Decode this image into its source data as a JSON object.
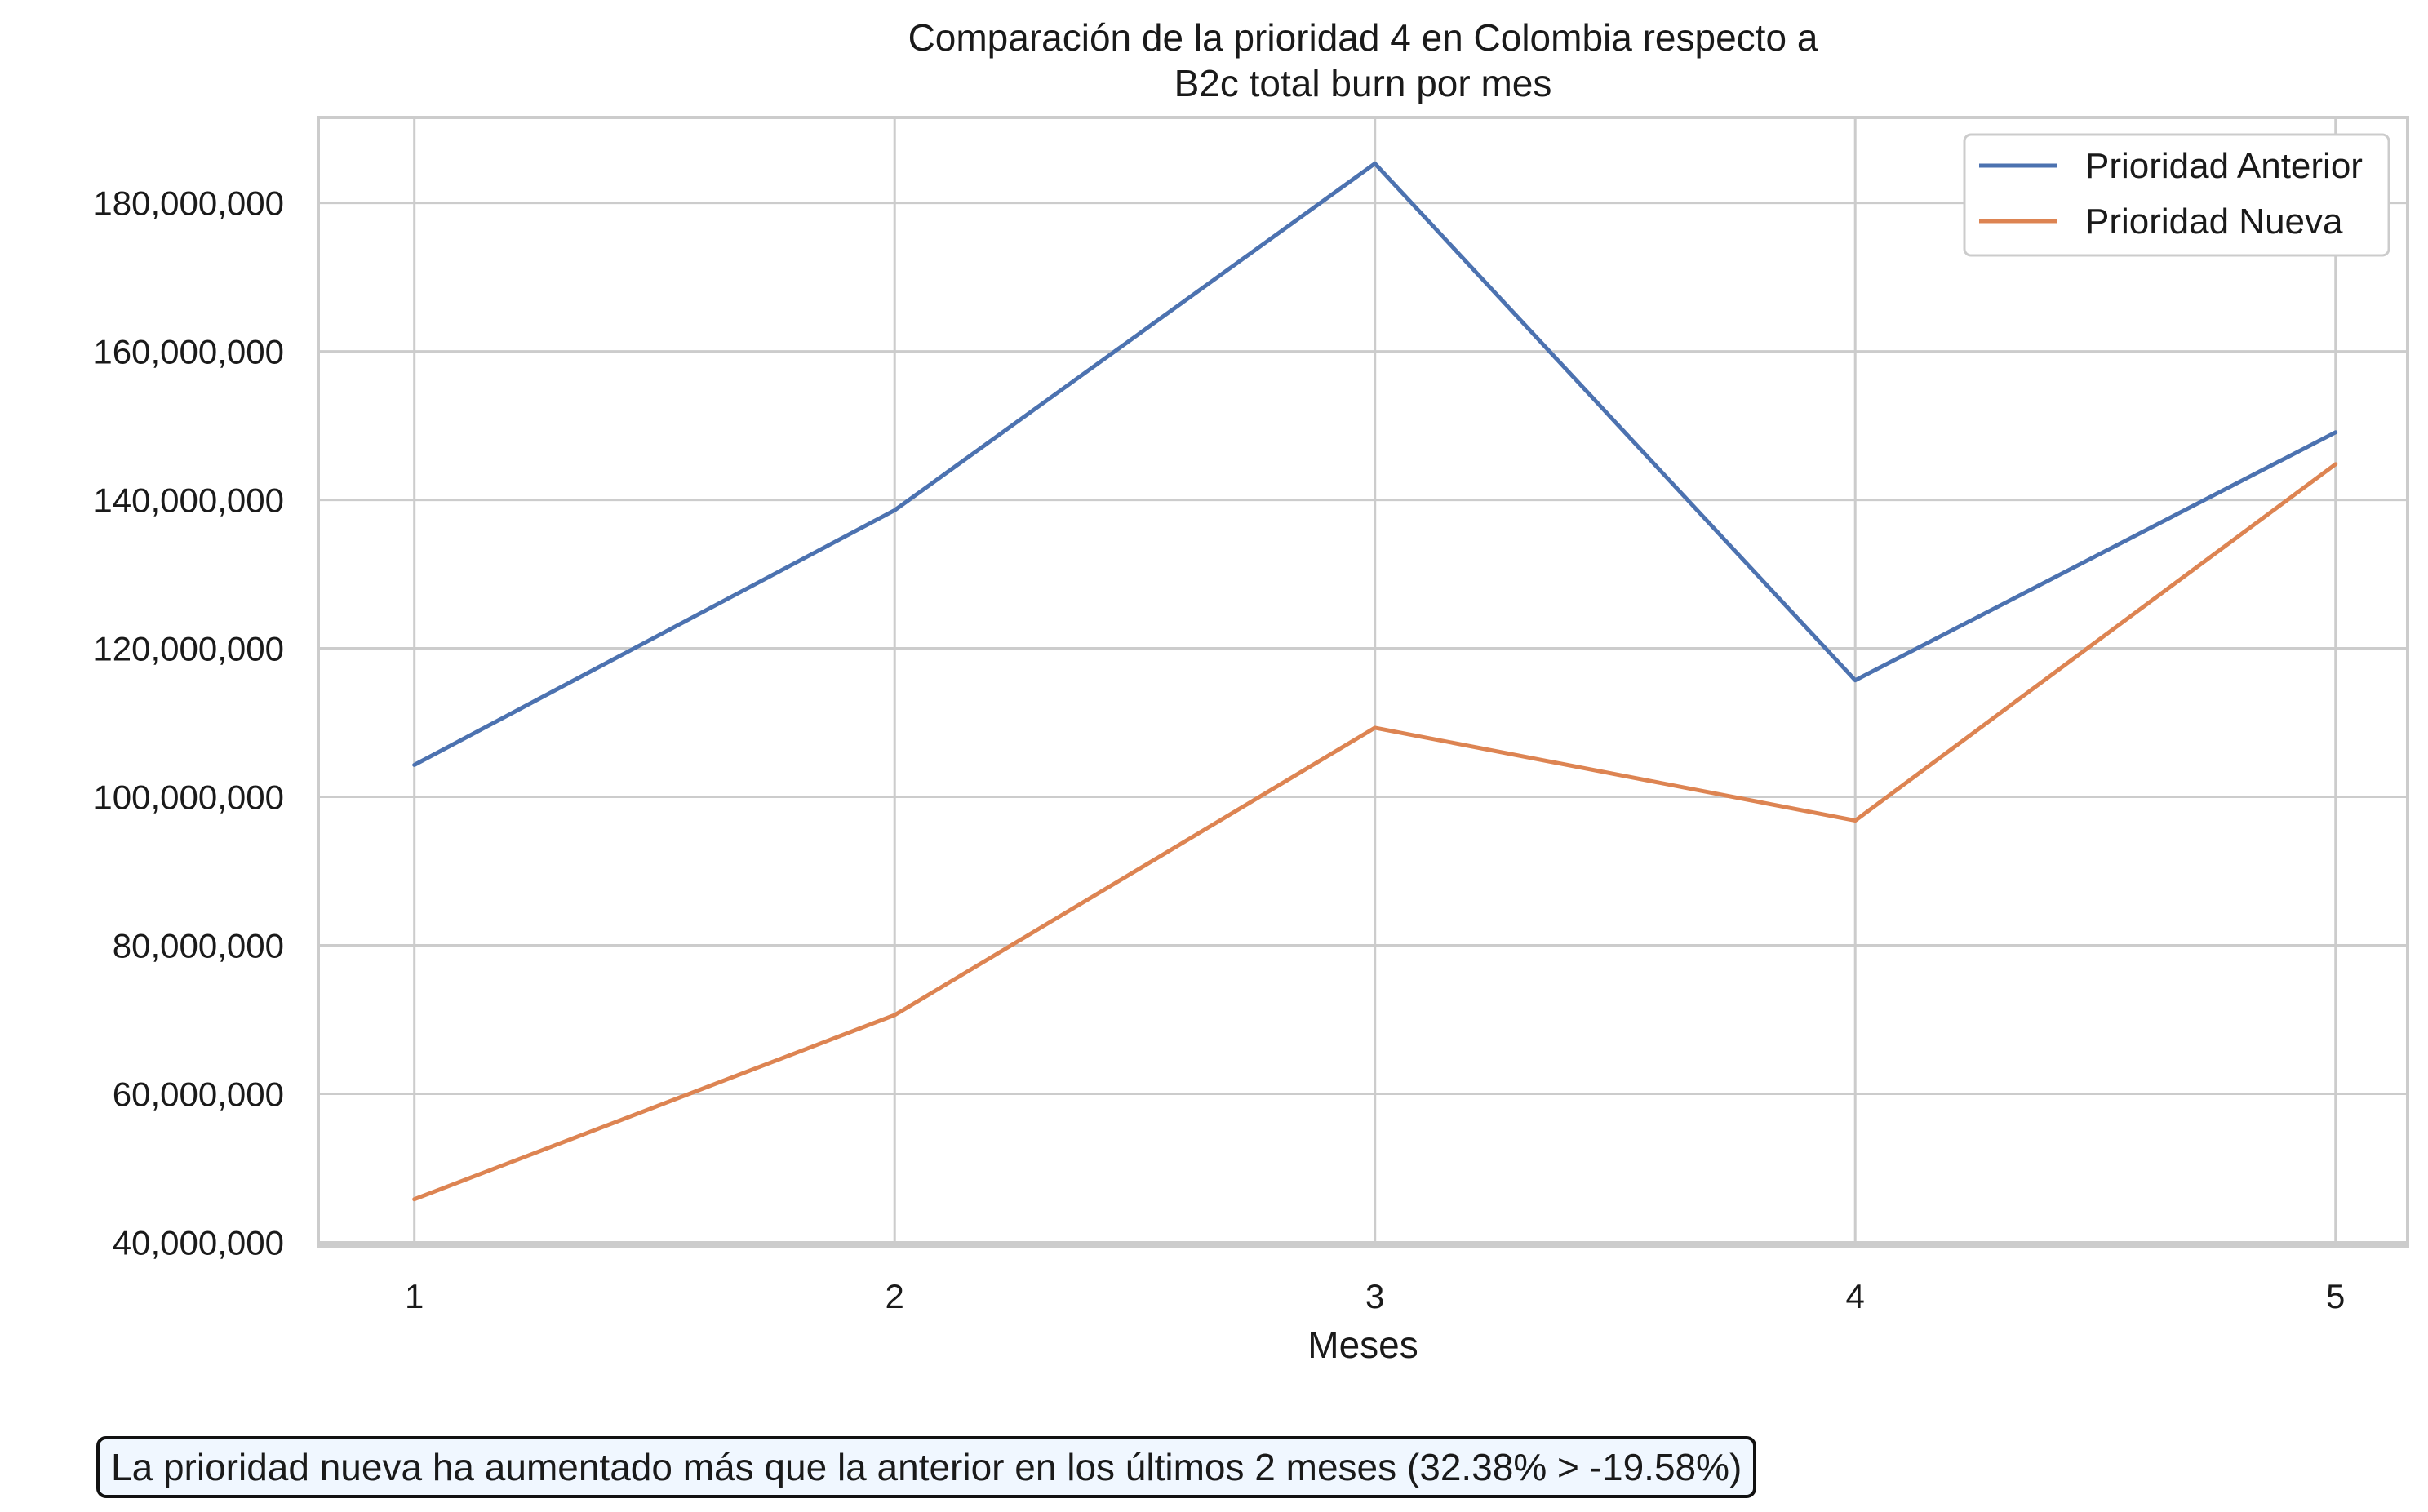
{
  "chart_data": {
    "type": "line",
    "title": "Comparación de la prioridad 4 en Colombia respecto a\nB2c total burn por mes",
    "title_lines": [
      "Comparación de la prioridad 4 en Colombia respecto a",
      "B2c total burn por mes"
    ],
    "xlabel": "Meses",
    "ylabel": "",
    "x": [
      1,
      2,
      3,
      4,
      5
    ],
    "x_tick_labels": [
      "1",
      "2",
      "3",
      "4",
      "5"
    ],
    "xlim": [
      0.8,
      5.15
    ],
    "ylim": [
      39500000,
      191500000
    ],
    "y_ticks": [
      40000000,
      60000000,
      80000000,
      100000000,
      120000000,
      140000000,
      160000000,
      180000000
    ],
    "y_tick_labels": [
      "40,000,000",
      "60,000,000",
      "80,000,000",
      "100,000,000",
      "120,000,000",
      "140,000,000",
      "160,000,000",
      "180,000,000"
    ],
    "grid": true,
    "legend_position": "top-right",
    "series": [
      {
        "name": "Prioridad Anterior",
        "color": "#4c72b0",
        "values": [
          104300000,
          138600000,
          185300000,
          115700000,
          149100000
        ]
      },
      {
        "name": "Prioridad Nueva",
        "color": "#dd8452",
        "values": [
          45800000,
          70600000,
          109300000,
          96800000,
          144800000
        ]
      }
    ]
  },
  "annotation": {
    "text": "La prioridad nueva ha aumentado más que la anterior en los últimos 2 meses (32.38% > -19.58%)"
  }
}
